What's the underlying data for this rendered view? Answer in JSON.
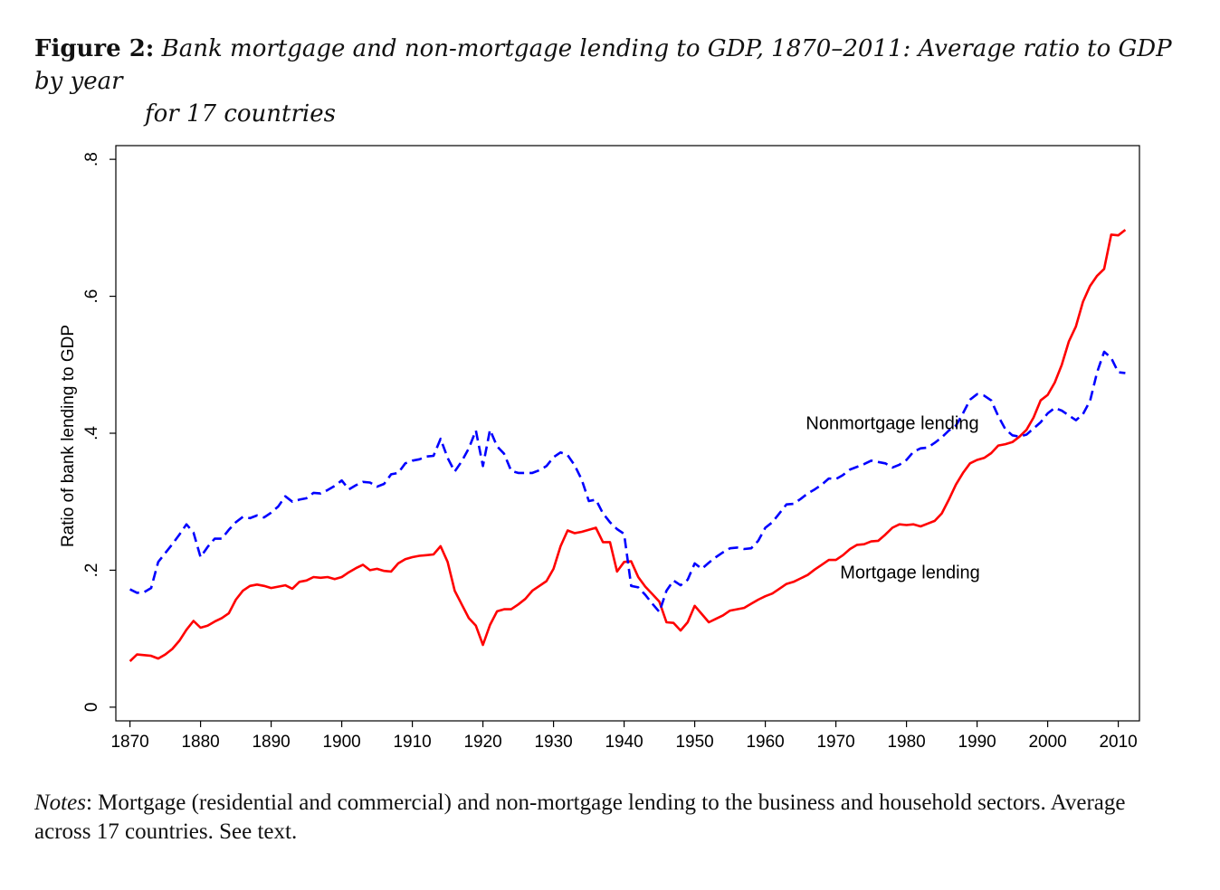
{
  "caption": {
    "label": "Figure 2:",
    "title_line1": "Bank mortgage and non-mortgage lending to GDP, 1870–2011: Average ratio to GDP by year",
    "title_line2": "for 17 countries"
  },
  "notes": {
    "label": "Notes",
    "text": ": Mortgage (residential and commercial) and non-mortgage lending to the business and household sectors. Average across 17 countries. See text."
  },
  "chart_data": {
    "type": "line",
    "title": "",
    "xlabel": "",
    "ylabel": "Ratio of bank lending to GDP",
    "xlim": [
      1868,
      2013
    ],
    "ylim": [
      -0.02,
      0.82
    ],
    "x_ticks": [
      1870,
      1880,
      1890,
      1900,
      1910,
      1920,
      1930,
      1940,
      1950,
      1960,
      1970,
      1980,
      1990,
      2000,
      2010
    ],
    "x_tick_labels": [
      "1870",
      "1880",
      "1890",
      "1900",
      "1910",
      "1920",
      "1930",
      "1940",
      "1950",
      "1960",
      "1970",
      "1980",
      "1990",
      "2000",
      "2010"
    ],
    "y_ticks": [
      0,
      0.2,
      0.4,
      0.6,
      0.8
    ],
    "y_tick_labels": [
      "0",
      ".2",
      ".4",
      ".6",
      ".8"
    ],
    "grid": false,
    "annotations": [
      {
        "text": "Nonmortgage lending",
        "x": 1978,
        "y": 0.406,
        "series": "Nonmortgage lending"
      },
      {
        "text": "Mortgage lending",
        "x": 1980.5,
        "y": 0.188,
        "series": "Mortgage lending"
      }
    ],
    "series": [
      {
        "name": "Mortgage lending",
        "color": "#ff0000",
        "style": "solid",
        "x": [
          1870,
          1871,
          1872,
          1873,
          1874,
          1875,
          1876,
          1877,
          1878,
          1879,
          1880,
          1881,
          1882,
          1883,
          1884,
          1885,
          1886,
          1887,
          1888,
          1889,
          1890,
          1891,
          1892,
          1893,
          1894,
          1895,
          1896,
          1897,
          1898,
          1899,
          1900,
          1901,
          1902,
          1903,
          1904,
          1905,
          1906,
          1907,
          1908,
          1909,
          1910,
          1911,
          1912,
          1913,
          1914,
          1915,
          1916,
          1917,
          1918,
          1919,
          1920,
          1921,
          1922,
          1923,
          1924,
          1925,
          1926,
          1927,
          1928,
          1929,
          1930,
          1931,
          1932,
          1933,
          1934,
          1935,
          1936,
          1937,
          1938,
          1939,
          1940,
          1941,
          1942,
          1943,
          1944,
          1945,
          1946,
          1947,
          1948,
          1949,
          1950,
          1951,
          1952,
          1953,
          1954,
          1955,
          1956,
          1957,
          1958,
          1959,
          1960,
          1961,
          1962,
          1963,
          1964,
          1965,
          1966,
          1967,
          1968,
          1969,
          1970,
          1971,
          1972,
          1973,
          1974,
          1975,
          1976,
          1977,
          1978,
          1979,
          1980,
          1981,
          1982,
          1983,
          1984,
          1985,
          1986,
          1987,
          1988,
          1989,
          1990,
          1991,
          1992,
          1993,
          1994,
          1995,
          1996,
          1997,
          1998,
          1999,
          2000,
          2001,
          2002,
          2003,
          2004,
          2005,
          2006,
          2007,
          2008,
          2009,
          2010,
          2011
        ],
        "y": [
          0.067,
          0.077,
          0.076,
          0.075,
          0.071,
          0.077,
          0.085,
          0.097,
          0.113,
          0.126,
          0.116,
          0.119,
          0.125,
          0.13,
          0.137,
          0.157,
          0.17,
          0.177,
          0.179,
          0.177,
          0.174,
          0.176,
          0.178,
          0.173,
          0.183,
          0.185,
          0.19,
          0.189,
          0.19,
          0.187,
          0.19,
          0.197,
          0.203,
          0.208,
          0.2,
          0.202,
          0.199,
          0.198,
          0.21,
          0.216,
          0.219,
          0.221,
          0.222,
          0.223,
          0.235,
          0.212,
          0.17,
          0.15,
          0.13,
          0.119,
          0.091,
          0.12,
          0.14,
          0.143,
          0.143,
          0.15,
          0.158,
          0.17,
          0.177,
          0.184,
          0.202,
          0.235,
          0.258,
          0.254,
          0.256,
          0.259,
          0.262,
          0.241,
          0.241,
          0.198,
          0.212,
          0.213,
          0.19,
          0.176,
          0.165,
          0.154,
          0.124,
          0.123,
          0.112,
          0.124,
          0.148,
          0.136,
          0.124,
          0.129,
          0.134,
          0.141,
          0.143,
          0.145,
          0.151,
          0.157,
          0.162,
          0.166,
          0.173,
          0.18,
          0.183,
          0.188,
          0.193,
          0.201,
          0.208,
          0.215,
          0.215,
          0.222,
          0.231,
          0.237,
          0.238,
          0.242,
          0.243,
          0.252,
          0.262,
          0.267,
          0.266,
          0.267,
          0.264,
          0.268,
          0.272,
          0.283,
          0.303,
          0.325,
          0.342,
          0.356,
          0.361,
          0.364,
          0.371,
          0.382,
          0.384,
          0.387,
          0.395,
          0.405,
          0.423,
          0.448,
          0.456,
          0.474,
          0.5,
          0.534,
          0.556,
          0.592,
          0.615,
          0.63,
          0.64,
          0.69,
          0.689,
          0.697
        ]
      },
      {
        "name": "Nonmortgage lending",
        "color": "#0000ff",
        "style": "dashed",
        "x": [
          1870,
          1871,
          1872,
          1873,
          1874,
          1875,
          1876,
          1877,
          1878,
          1879,
          1880,
          1881,
          1882,
          1883,
          1884,
          1885,
          1886,
          1887,
          1888,
          1889,
          1890,
          1891,
          1892,
          1893,
          1894,
          1895,
          1896,
          1897,
          1898,
          1899,
          1900,
          1901,
          1902,
          1903,
          1904,
          1905,
          1906,
          1907,
          1908,
          1909,
          1910,
          1911,
          1912,
          1913,
          1914,
          1915,
          1916,
          1917,
          1918,
          1919,
          1920,
          1921,
          1922,
          1923,
          1924,
          1925,
          1926,
          1927,
          1928,
          1929,
          1930,
          1931,
          1932,
          1933,
          1934,
          1935,
          1936,
          1937,
          1938,
          1939,
          1940,
          1941,
          1942,
          1943,
          1944,
          1945,
          1946,
          1947,
          1948,
          1949,
          1950,
          1951,
          1952,
          1953,
          1954,
          1955,
          1956,
          1957,
          1958,
          1959,
          1960,
          1961,
          1962,
          1963,
          1964,
          1965,
          1966,
          1967,
          1968,
          1969,
          1970,
          1971,
          1972,
          1973,
          1974,
          1975,
          1976,
          1977,
          1978,
          1979,
          1980,
          1981,
          1982,
          1983,
          1984,
          1985,
          1986,
          1987,
          1988,
          1989,
          1990,
          1991,
          1992,
          1993,
          1994,
          1995,
          1996,
          1997,
          1998,
          1999,
          2000,
          2001,
          2002,
          2003,
          2004,
          2005,
          2006,
          2007,
          2008,
          2009,
          2010,
          2011
        ],
        "y": [
          0.172,
          0.167,
          0.168,
          0.174,
          0.212,
          0.225,
          0.238,
          0.252,
          0.267,
          0.255,
          0.219,
          0.234,
          0.246,
          0.246,
          0.259,
          0.27,
          0.278,
          0.276,
          0.28,
          0.277,
          0.284,
          0.293,
          0.308,
          0.3,
          0.303,
          0.305,
          0.313,
          0.312,
          0.317,
          0.323,
          0.331,
          0.318,
          0.324,
          0.329,
          0.328,
          0.322,
          0.326,
          0.34,
          0.342,
          0.356,
          0.36,
          0.362,
          0.366,
          0.367,
          0.392,
          0.364,
          0.344,
          0.359,
          0.378,
          0.404,
          0.352,
          0.405,
          0.381,
          0.37,
          0.345,
          0.342,
          0.342,
          0.342,
          0.346,
          0.352,
          0.365,
          0.372,
          0.368,
          0.353,
          0.332,
          0.301,
          0.303,
          0.283,
          0.27,
          0.26,
          0.253,
          0.177,
          0.175,
          0.164,
          0.151,
          0.139,
          0.17,
          0.185,
          0.178,
          0.186,
          0.21,
          0.202,
          0.211,
          0.219,
          0.226,
          0.232,
          0.233,
          0.231,
          0.232,
          0.243,
          0.262,
          0.27,
          0.283,
          0.296,
          0.297,
          0.304,
          0.312,
          0.318,
          0.325,
          0.334,
          0.333,
          0.339,
          0.347,
          0.351,
          0.355,
          0.36,
          0.358,
          0.356,
          0.35,
          0.354,
          0.361,
          0.373,
          0.378,
          0.379,
          0.386,
          0.394,
          0.404,
          0.411,
          0.429,
          0.449,
          0.457,
          0.455,
          0.448,
          0.425,
          0.406,
          0.397,
          0.395,
          0.398,
          0.407,
          0.416,
          0.429,
          0.437,
          0.433,
          0.426,
          0.419,
          0.428,
          0.447,
          0.489,
          0.519,
          0.51,
          0.489,
          0.488
        ]
      }
    ]
  }
}
